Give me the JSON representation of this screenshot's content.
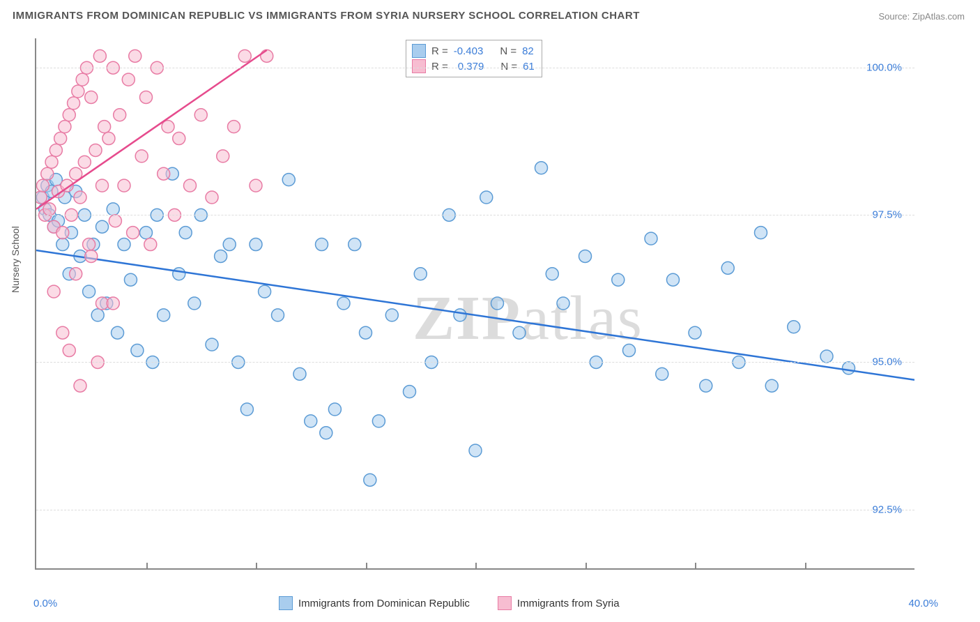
{
  "title": "IMMIGRANTS FROM DOMINICAN REPUBLIC VS IMMIGRANTS FROM SYRIA NURSERY SCHOOL CORRELATION CHART",
  "source": "Source: ZipAtlas.com",
  "watermark_bold": "ZIP",
  "watermark_light": "atlas",
  "yaxis_title": "Nursery School",
  "chart": {
    "type": "scatter",
    "x_min": 0.0,
    "x_max": 40.0,
    "y_min": 91.5,
    "y_max": 100.5,
    "x_label_min": "0.0%",
    "x_label_max": "40.0%",
    "x_ticks": [
      5,
      10,
      15,
      20,
      25,
      30,
      35
    ],
    "y_ticks": [
      {
        "v": 92.5,
        "label": "92.5%"
      },
      {
        "v": 95.0,
        "label": "95.0%"
      },
      {
        "v": 97.5,
        "label": "97.5%"
      },
      {
        "v": 100.0,
        "label": "100.0%"
      }
    ],
    "grid_color": "#dddddd",
    "background_color": "#ffffff",
    "marker_radius": 9,
    "marker_stroke_width": 1.5,
    "trend_line_width": 2.5,
    "series": [
      {
        "id": "dominican",
        "label": "Immigrants from Dominican Republic",
        "fill": "#a9cdee",
        "stroke": "#5b9bd5",
        "fill_opacity": 0.55,
        "R": "-0.403",
        "N": "82",
        "trend": {
          "x1": 0,
          "y1": 96.9,
          "x2": 40,
          "y2": 94.7,
          "color": "#2e75d6"
        },
        "points": [
          [
            0.3,
            97.8
          ],
          [
            0.4,
            97.6
          ],
          [
            0.5,
            98.0
          ],
          [
            0.6,
            97.5
          ],
          [
            0.7,
            97.9
          ],
          [
            0.8,
            97.3
          ],
          [
            0.9,
            98.1
          ],
          [
            1.0,
            97.4
          ],
          [
            1.2,
            97.0
          ],
          [
            1.3,
            97.8
          ],
          [
            1.5,
            96.5
          ],
          [
            1.6,
            97.2
          ],
          [
            1.8,
            97.9
          ],
          [
            2.0,
            96.8
          ],
          [
            2.2,
            97.5
          ],
          [
            2.4,
            96.2
          ],
          [
            2.6,
            97.0
          ],
          [
            2.8,
            95.8
          ],
          [
            3.0,
            97.3
          ],
          [
            3.2,
            96.0
          ],
          [
            3.5,
            97.6
          ],
          [
            3.7,
            95.5
          ],
          [
            4.0,
            97.0
          ],
          [
            4.3,
            96.4
          ],
          [
            4.6,
            95.2
          ],
          [
            5.0,
            97.2
          ],
          [
            5.3,
            95.0
          ],
          [
            5.5,
            97.5
          ],
          [
            5.8,
            95.8
          ],
          [
            6.2,
            98.2
          ],
          [
            6.5,
            96.5
          ],
          [
            6.8,
            97.2
          ],
          [
            7.2,
            96.0
          ],
          [
            7.5,
            97.5
          ],
          [
            8.0,
            95.3
          ],
          [
            8.4,
            96.8
          ],
          [
            8.8,
            97.0
          ],
          [
            9.2,
            95.0
          ],
          [
            9.6,
            94.2
          ],
          [
            10.0,
            97.0
          ],
          [
            10.4,
            96.2
          ],
          [
            11.0,
            95.8
          ],
          [
            11.5,
            98.1
          ],
          [
            12.0,
            94.8
          ],
          [
            12.5,
            94.0
          ],
          [
            13.0,
            97.0
          ],
          [
            13.2,
            93.8
          ],
          [
            13.6,
            94.2
          ],
          [
            14.0,
            96.0
          ],
          [
            14.5,
            97.0
          ],
          [
            15.0,
            95.5
          ],
          [
            15.2,
            93.0
          ],
          [
            15.6,
            94.0
          ],
          [
            16.2,
            95.8
          ],
          [
            17.0,
            94.5
          ],
          [
            17.5,
            96.5
          ],
          [
            18.0,
            95.0
          ],
          [
            18.8,
            97.5
          ],
          [
            19.3,
            95.8
          ],
          [
            20.0,
            93.5
          ],
          [
            20.5,
            97.8
          ],
          [
            21.0,
            96.0
          ],
          [
            22.0,
            95.5
          ],
          [
            23.0,
            98.3
          ],
          [
            23.5,
            96.5
          ],
          [
            24.0,
            96.0
          ],
          [
            25.0,
            96.8
          ],
          [
            25.5,
            95.0
          ],
          [
            26.5,
            96.4
          ],
          [
            27.0,
            95.2
          ],
          [
            28.0,
            97.1
          ],
          [
            28.5,
            94.8
          ],
          [
            29.0,
            96.4
          ],
          [
            30.0,
            95.5
          ],
          [
            30.5,
            94.6
          ],
          [
            31.5,
            96.6
          ],
          [
            32.0,
            95.0
          ],
          [
            33.0,
            97.2
          ],
          [
            33.5,
            94.6
          ],
          [
            34.5,
            95.6
          ],
          [
            36.0,
            95.1
          ],
          [
            37.0,
            94.9
          ]
        ]
      },
      {
        "id": "syria",
        "label": "Immigrants from Syria",
        "fill": "#f7bdd1",
        "stroke": "#e87ba4",
        "fill_opacity": 0.55,
        "R": "0.379",
        "N": "61",
        "trend": {
          "x1": 0,
          "y1": 97.6,
          "x2": 10.5,
          "y2": 100.3,
          "color": "#e64b8d"
        },
        "points": [
          [
            0.2,
            97.8
          ],
          [
            0.3,
            98.0
          ],
          [
            0.4,
            97.5
          ],
          [
            0.5,
            98.2
          ],
          [
            0.6,
            97.6
          ],
          [
            0.7,
            98.4
          ],
          [
            0.8,
            97.3
          ],
          [
            0.9,
            98.6
          ],
          [
            1.0,
            97.9
          ],
          [
            1.1,
            98.8
          ],
          [
            1.2,
            97.2
          ],
          [
            1.3,
            99.0
          ],
          [
            1.4,
            98.0
          ],
          [
            1.5,
            99.2
          ],
          [
            1.6,
            97.5
          ],
          [
            1.7,
            99.4
          ],
          [
            1.8,
            98.2
          ],
          [
            1.9,
            99.6
          ],
          [
            2.0,
            97.8
          ],
          [
            2.1,
            99.8
          ],
          [
            2.2,
            98.4
          ],
          [
            2.3,
            100.0
          ],
          [
            2.4,
            97.0
          ],
          [
            2.5,
            99.5
          ],
          [
            2.7,
            98.6
          ],
          [
            2.9,
            100.2
          ],
          [
            3.0,
            96.0
          ],
          [
            3.1,
            99.0
          ],
          [
            3.3,
            98.8
          ],
          [
            3.5,
            100.0
          ],
          [
            3.6,
            97.4
          ],
          [
            3.8,
            99.2
          ],
          [
            4.0,
            98.0
          ],
          [
            4.2,
            99.8
          ],
          [
            4.4,
            97.2
          ],
          [
            4.5,
            100.2
          ],
          [
            4.8,
            98.5
          ],
          [
            5.0,
            99.5
          ],
          [
            5.2,
            97.0
          ],
          [
            5.5,
            100.0
          ],
          [
            5.8,
            98.2
          ],
          [
            6.0,
            99.0
          ],
          [
            6.3,
            97.5
          ],
          [
            6.5,
            98.8
          ],
          [
            7.0,
            98.0
          ],
          [
            7.5,
            99.2
          ],
          [
            8.0,
            97.8
          ],
          [
            8.5,
            98.5
          ],
          [
            9.0,
            99.0
          ],
          [
            9.5,
            100.2
          ],
          [
            10.0,
            98.0
          ],
          [
            10.5,
            100.2
          ],
          [
            1.5,
            95.2
          ],
          [
            2.0,
            94.6
          ],
          [
            2.8,
            95.0
          ],
          [
            3.5,
            96.0
          ],
          [
            0.8,
            96.2
          ],
          [
            1.2,
            95.5
          ],
          [
            1.8,
            96.5
          ],
          [
            2.5,
            96.8
          ],
          [
            3.0,
            98.0
          ]
        ]
      }
    ]
  },
  "legend_stats_label_R": "R =",
  "legend_stats_label_N": "N =",
  "text_color": "#555555",
  "value_color": "#3b7dd8"
}
